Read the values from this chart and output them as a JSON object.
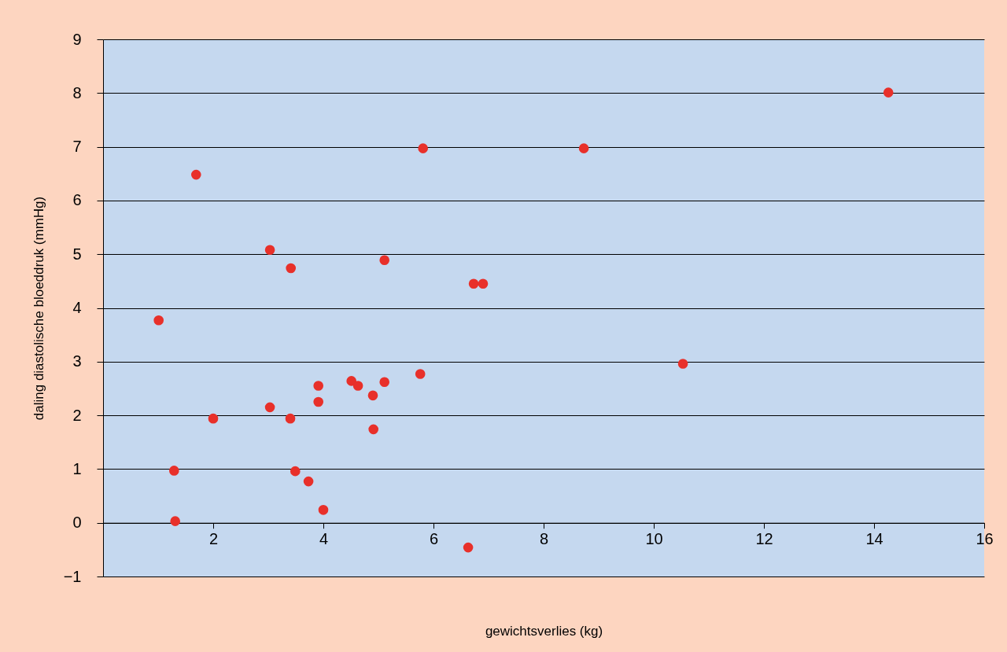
{
  "chart_data": {
    "type": "scatter",
    "xlabel": "gewichtsverlies (kg)",
    "ylabel": "daling diastolische bloeddruk (mmHg)",
    "x": [
      1.01,
      1.69,
      1.29,
      1.31,
      2.0,
      3.03,
      3.41,
      3.03,
      3.4,
      3.49,
      3.73,
      3.91,
      3.91,
      4.0,
      4.51,
      4.63,
      4.9,
      4.91,
      5.11,
      5.11,
      5.76,
      5.81,
      6.63,
      6.73,
      6.9,
      8.73,
      10.53,
      14.26
    ],
    "series": [
      {
        "color": "#e8302a",
        "values": [
          3.77,
          6.48,
          0.97,
          0.03,
          1.94,
          5.08,
          4.74,
          2.15,
          1.94,
          0.96,
          0.77,
          2.55,
          2.25,
          0.24,
          2.64,
          2.55,
          2.37,
          1.74,
          4.89,
          2.62,
          2.77,
          6.97,
          -0.46,
          4.45,
          4.45,
          6.97,
          2.96,
          8.01
        ]
      }
    ],
    "xlim": [
      0,
      16
    ],
    "xticks": [
      2,
      4,
      6,
      8,
      10,
      12,
      14,
      16
    ],
    "ylim": [
      -1,
      9
    ],
    "yticks": [
      -1,
      0,
      1,
      2,
      3,
      4,
      5,
      6,
      7,
      8,
      9
    ],
    "grid": "y",
    "marker": "circle",
    "legend": false
  }
}
